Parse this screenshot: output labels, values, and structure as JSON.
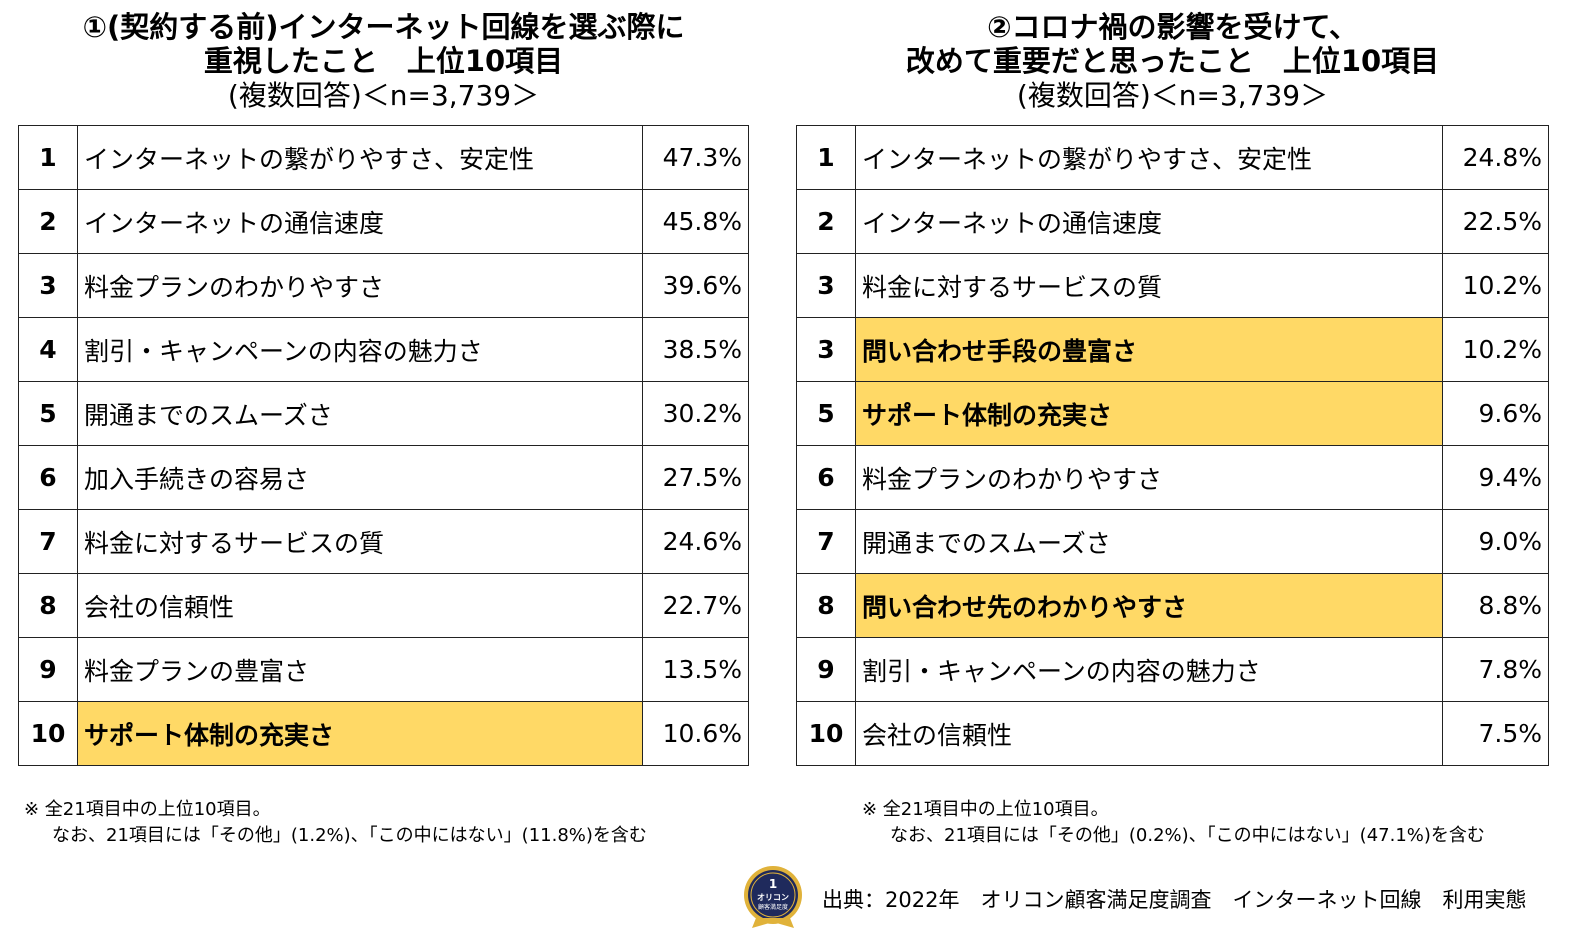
{
  "left": {
    "title_line1": "①(契約する前)インターネット回線を選ぶ際に",
    "title_line2": "重視したこと　上位10項目",
    "title_line3": "(複数回答)＜n=3,739＞",
    "rows": [
      {
        "rank": "1",
        "item": "インターネットの繋がりやすさ、安定性",
        "pct": "47.3%",
        "highlight": false
      },
      {
        "rank": "2",
        "item": "インターネットの通信速度",
        "pct": "45.8%",
        "highlight": false
      },
      {
        "rank": "3",
        "item": "料金プランのわかりやすさ",
        "pct": "39.6%",
        "highlight": false
      },
      {
        "rank": "4",
        "item": "割引・キャンペーンの内容の魅力さ",
        "pct": "38.5%",
        "highlight": false
      },
      {
        "rank": "5",
        "item": "開通までのスムーズさ",
        "pct": "30.2%",
        "highlight": false
      },
      {
        "rank": "6",
        "item": "加入手続きの容易さ",
        "pct": "27.5%",
        "highlight": false
      },
      {
        "rank": "7",
        "item": "料金に対するサービスの質",
        "pct": "24.6%",
        "highlight": false
      },
      {
        "rank": "8",
        "item": "会社の信頼性",
        "pct": "22.7%",
        "highlight": false
      },
      {
        "rank": "9",
        "item": "料金プランの豊富さ",
        "pct": "13.5%",
        "highlight": false
      },
      {
        "rank": "10",
        "item": "サポート体制の充実さ",
        "pct": "10.6%",
        "highlight": true
      }
    ],
    "note_line1": "※ 全21項目中の上位10項目。",
    "note_line2": "なお、21項目には「その他」(1.2%)、「この中にはない」(11.8%)を含む"
  },
  "right": {
    "title_line1": "②コロナ禍の影響を受けて、",
    "title_line2": "改めて重要だと思ったこと　上位10項目",
    "title_line3": "(複数回答)＜n=3,739＞",
    "rows": [
      {
        "rank": "1",
        "item": "インターネットの繋がりやすさ、安定性",
        "pct": "24.8%",
        "highlight": false
      },
      {
        "rank": "2",
        "item": "インターネットの通信速度",
        "pct": "22.5%",
        "highlight": false
      },
      {
        "rank": "3",
        "item": "料金に対するサービスの質",
        "pct": "10.2%",
        "highlight": false
      },
      {
        "rank": "3",
        "item": "問い合わせ手段の豊富さ",
        "pct": "10.2%",
        "highlight": true
      },
      {
        "rank": "5",
        "item": "サポート体制の充実さ",
        "pct": "9.6%",
        "highlight": true
      },
      {
        "rank": "6",
        "item": "料金プランのわかりやすさ",
        "pct": "9.4%",
        "highlight": false
      },
      {
        "rank": "7",
        "item": "開通までのスムーズさ",
        "pct": "9.0%",
        "highlight": false
      },
      {
        "rank": "8",
        "item": "問い合わせ先のわかりやすさ",
        "pct": "8.8%",
        "highlight": true
      },
      {
        "rank": "9",
        "item": "割引・キャンペーンの内容の魅力さ",
        "pct": "7.8%",
        "highlight": false
      },
      {
        "rank": "10",
        "item": "会社の信頼性",
        "pct": "7.5%",
        "highlight": false
      }
    ],
    "note_line1": "※ 全21項目中の上位10項目。",
    "note_line2": "なお、21項目には「その他」(0.2%)、「この中にはない」(47.1%)を含む"
  },
  "source": "出典：2022年　オリコン顧客満足度調査　インターネット回線　利用実態",
  "badge": {
    "icon": "oricon-award-badge-icon",
    "text_rank": "1",
    "text_brand": "オリコン",
    "text_sub": "顧客満足度"
  },
  "colors": {
    "highlight": "#ffd966",
    "badge_navy": "#1f2a5c",
    "badge_gold": "#e0b23a"
  }
}
